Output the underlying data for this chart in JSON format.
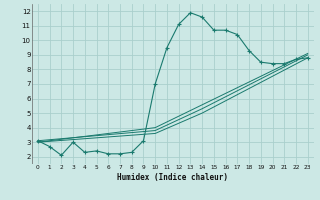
{
  "xlabel": "Humidex (Indice chaleur)",
  "bg_color": "#cce8e5",
  "grid_color": "#aacfcc",
  "line_color": "#1a7a6e",
  "xlim": [
    -0.5,
    23.5
  ],
  "ylim": [
    1.5,
    12.5
  ],
  "xticks": [
    0,
    1,
    2,
    3,
    4,
    5,
    6,
    7,
    8,
    9,
    10,
    11,
    12,
    13,
    14,
    15,
    16,
    17,
    18,
    19,
    20,
    21,
    22,
    23
  ],
  "yticks": [
    2,
    3,
    4,
    5,
    6,
    7,
    8,
    9,
    10,
    11,
    12
  ],
  "line1_x": [
    0,
    1,
    2,
    3,
    4,
    5,
    6,
    7,
    8,
    9,
    10,
    11,
    12,
    13,
    14,
    15,
    16,
    17,
    18,
    19,
    20,
    21,
    22,
    23
  ],
  "line1_y": [
    3.1,
    2.7,
    2.1,
    3.0,
    2.3,
    2.4,
    2.2,
    2.2,
    2.3,
    3.1,
    7.0,
    9.5,
    11.1,
    11.9,
    11.6,
    10.7,
    10.7,
    10.4,
    9.3,
    8.5,
    8.4,
    8.4,
    8.7,
    8.8
  ],
  "line2_x": [
    0,
    10,
    14,
    23
  ],
  "line2_y": [
    3.1,
    3.8,
    5.3,
    9.0
  ],
  "line3_x": [
    0,
    10,
    14,
    23
  ],
  "line3_y": [
    3.0,
    3.6,
    5.0,
    8.8
  ],
  "line4_x": [
    0,
    10,
    23
  ],
  "line4_y": [
    3.0,
    4.0,
    9.1
  ]
}
